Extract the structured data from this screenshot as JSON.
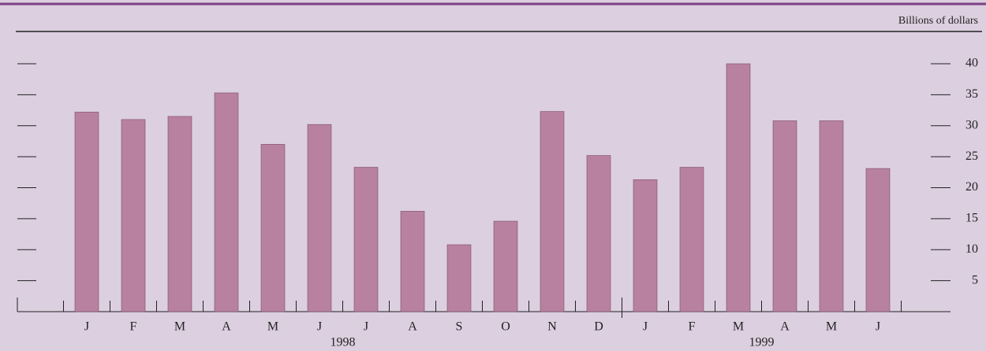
{
  "chart_data": {
    "type": "bar",
    "unit_label": "Billions of dollars",
    "categories": [
      "J",
      "F",
      "M",
      "A",
      "M",
      "J",
      "J",
      "A",
      "S",
      "O",
      "N",
      "D",
      "J",
      "F",
      "M",
      "A",
      "M",
      "J"
    ],
    "values": [
      32.2,
      31,
      31.5,
      35.3,
      27,
      30.2,
      23.3,
      16.2,
      10.8,
      14.6,
      32.3,
      25.2,
      21.3,
      23.3,
      40,
      30.8,
      30.8,
      23.1
    ],
    "years": [
      "1998",
      "1999"
    ],
    "color": "#b8819f",
    "ylim": [
      0,
      40
    ],
    "yticks": [
      5,
      10,
      15,
      20,
      25,
      30,
      35,
      40
    ]
  }
}
